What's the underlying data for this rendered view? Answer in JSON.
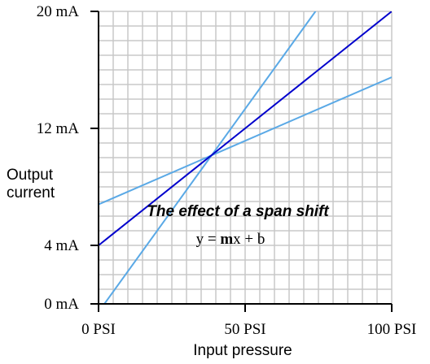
{
  "chart_data": {
    "type": "line",
    "title": "The effect of a span shift",
    "annotation": [
      "y = ",
      "m",
      "x + b"
    ],
    "xlabel": "Input pressure",
    "ylabel": [
      "Output",
      "current"
    ],
    "xlim": [
      0,
      100
    ],
    "ylim": [
      0,
      20
    ],
    "xticks": [
      {
        "value": 0,
        "label": "0 PSI"
      },
      {
        "value": 50,
        "label": "50 PSI"
      },
      {
        "value": 100,
        "label": "100 PSI"
      }
    ],
    "yticks": [
      {
        "value": 0,
        "label": "0 mA"
      },
      {
        "value": 4,
        "label": "4 mA"
      },
      {
        "value": 12,
        "label": "12 mA"
      },
      {
        "value": 20,
        "label": "20 mA"
      }
    ],
    "grid": {
      "x_step": 5,
      "y_step": 1,
      "color": "#c8c8c8"
    },
    "series": [
      {
        "color": "#5aa9e6",
        "x": [
          0,
          100
        ],
        "values": [
          6.8,
          15.5
        ]
      },
      {
        "color": "#5aa9e6",
        "x": [
          2,
          74
        ],
        "values": [
          0,
          20
        ]
      },
      {
        "color": "#0000cc",
        "x": [
          0,
          100
        ],
        "values": [
          4,
          20
        ]
      }
    ]
  }
}
